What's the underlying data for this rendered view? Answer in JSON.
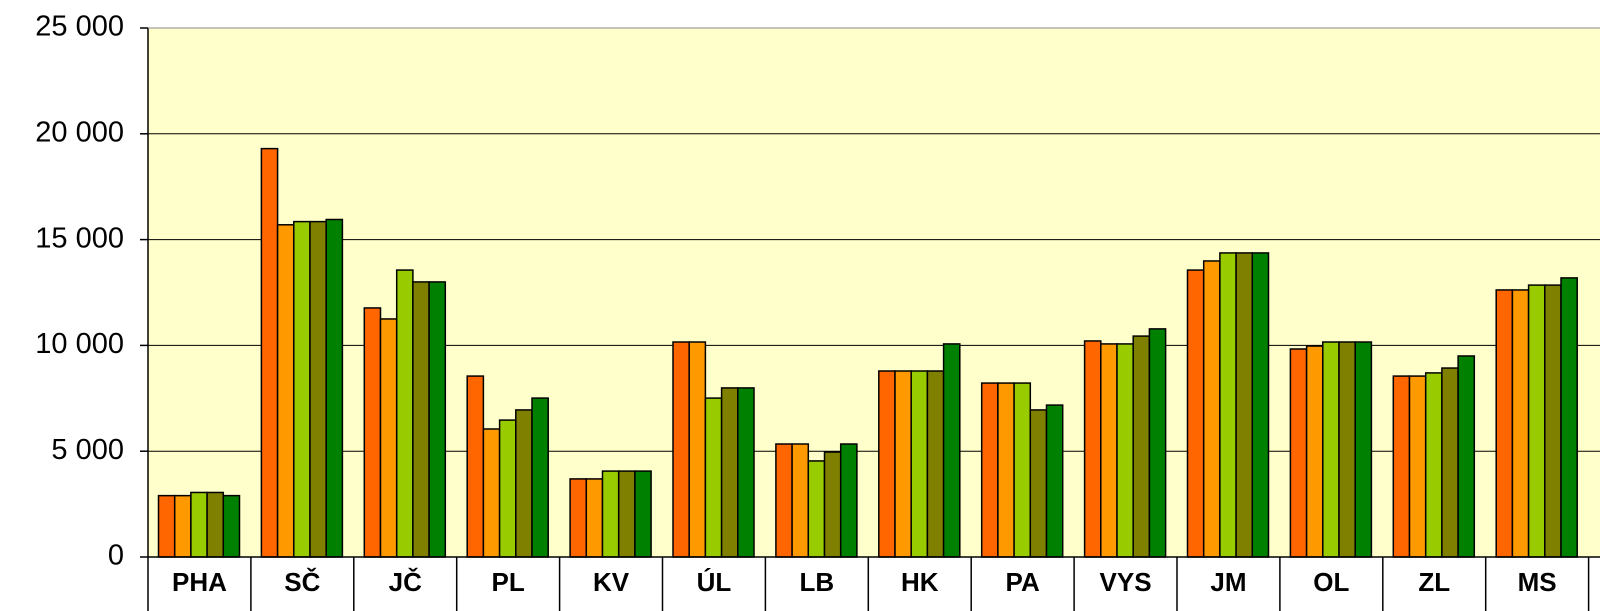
{
  "chart_data": {
    "type": "bar",
    "categories": [
      "PHA",
      "SČ",
      "JČ",
      "PL",
      "KV",
      "ÚL",
      "LB",
      "HK",
      "PA",
      "VYS",
      "JM",
      "OL",
      "ZL",
      "MS"
    ],
    "series": [
      {
        "color": "#ff6600",
        "values": [
          2900,
          19300,
          11770,
          8550,
          3690,
          10160,
          5340,
          8790,
          8220,
          10210,
          13560,
          9830,
          8550,
          12620
        ]
      },
      {
        "color": "#ff9900",
        "values": [
          2900,
          15700,
          11250,
          6050,
          3690,
          10160,
          5340,
          8790,
          8220,
          10070,
          13990,
          9970,
          8550,
          12620
        ]
      },
      {
        "color": "#99cc00",
        "values": [
          3050,
          15850,
          13560,
          6470,
          4060,
          7510,
          4540,
          8790,
          8220,
          10070,
          14370,
          10160,
          8700,
          12850
        ]
      },
      {
        "color": "#808000",
        "values": [
          3050,
          15850,
          13000,
          6950,
          4060,
          7990,
          4960,
          8790,
          6950,
          10440,
          14370,
          10160,
          8930,
          12850
        ]
      },
      {
        "color": "#008000",
        "values": [
          2900,
          15950,
          13000,
          7510,
          4060,
          7990,
          5340,
          10070,
          7180,
          10780,
          14370,
          10160,
          9500,
          13190
        ]
      }
    ],
    "ylim": [
      0,
      25000
    ],
    "yticks": [
      0,
      {
        "value": 5000,
        "label": "5 000"
      },
      {
        "value": 10000,
        "label": "10 000"
      },
      {
        "value": 15000,
        "label": "15 000"
      },
      {
        "value": 20000,
        "label": "20 000"
      },
      {
        "value": 25000,
        "label": "25 000"
      }
    ],
    "grid": true,
    "background": "#ffffcc"
  }
}
